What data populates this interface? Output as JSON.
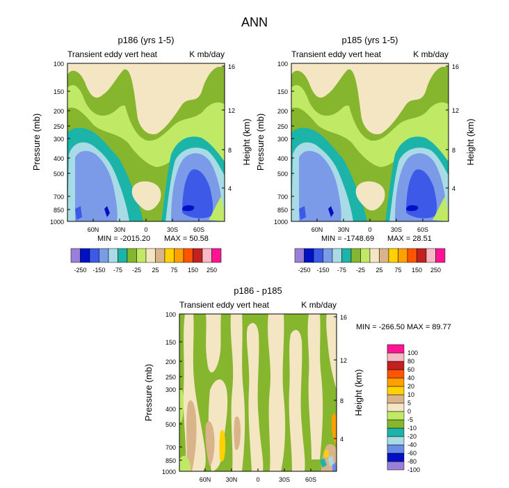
{
  "figure_title": "ANN",
  "colors": {
    "top_scale": [
      "#9a7fd8",
      "#0010c4",
      "#3c59e8",
      "#7b9be8",
      "#a8dbe6",
      "#1cb3a9",
      "#86b62e",
      "#c0ea66",
      "#f4e6c3",
      "#d9b48a",
      "#ffd200",
      "#ffa000",
      "#ff5500",
      "#c22021",
      "#f7b9c4",
      "#ff1493"
    ],
    "diff_scale": [
      "#9a7fd8",
      "#0010c4",
      "#6b8be8",
      "#a8dbe6",
      "#1cb3a9",
      "#86b62e",
      "#c0ea66",
      "#f4e6c3",
      "#d9b48a",
      "#ffd200",
      "#ffa000",
      "#ff5500",
      "#c22021",
      "#f7b9c4",
      "#ff1493"
    ]
  },
  "chart_data": [
    {
      "type": "contour",
      "title": "p186 (yrs 1-5)",
      "left_label": "Transient eddy vert heat",
      "right_label": "K mb/day",
      "ylabel": "Pressure (mb)",
      "ylabel_right": "Height (km)",
      "x_ticks": [
        "60N",
        "30N",
        "0",
        "30S",
        "60S"
      ],
      "y_ticks": [
        "100",
        "150",
        "200",
        "250",
        "300",
        "400",
        "500",
        "700",
        "850",
        "1000"
      ],
      "y_right_ticks": [
        "16",
        "12",
        "8",
        "4"
      ],
      "min_label": "MIN = -2015.20",
      "max_label": "MAX = 50.58",
      "colorbar_labels": [
        "-250",
        "-150",
        "-75",
        "-25",
        "25",
        "75",
        "150",
        "250"
      ],
      "levels": [
        -250,
        -200,
        -150,
        -100,
        -75,
        -50,
        -25,
        0,
        25,
        50,
        75,
        100,
        150,
        200,
        250
      ]
    },
    {
      "type": "contour",
      "title": "p185 (yrs 1-5)",
      "left_label": "Transient eddy vert heat",
      "right_label": "K mb/day",
      "ylabel": "Pressure (mb)",
      "ylabel_right": "Height (km)",
      "x_ticks": [
        "60N",
        "30N",
        "0",
        "30S",
        "60S"
      ],
      "y_ticks": [
        "100",
        "150",
        "200",
        "250",
        "300",
        "400",
        "500",
        "700",
        "850",
        "1000"
      ],
      "y_right_ticks": [
        "16",
        "12",
        "8",
        "4"
      ],
      "min_label": "MIN = -1748.69",
      "max_label": "MAX = 28.51",
      "colorbar_labels": [
        "-250",
        "-150",
        "-75",
        "-25",
        "25",
        "75",
        "150",
        "250"
      ],
      "levels": [
        -250,
        -200,
        -150,
        -100,
        -75,
        -50,
        -25,
        0,
        25,
        50,
        75,
        100,
        150,
        200,
        250
      ]
    },
    {
      "type": "contour",
      "title": "p186 - p185",
      "left_label": "Transient eddy vert heat",
      "right_label": "K mb/day",
      "ylabel": "Pressure (mb)",
      "ylabel_right": "Height (km)",
      "x_ticks": [
        "60N",
        "30N",
        "0",
        "30S",
        "60S"
      ],
      "y_ticks": [
        "100",
        "150",
        "200",
        "250",
        "300",
        "400",
        "500",
        "700",
        "850",
        "1000"
      ],
      "y_right_ticks": [
        "16",
        "12",
        "8",
        "4"
      ],
      "min_label": "MIN = -266.50",
      "max_label": "MAX = 89.77",
      "colorbar_labels": [
        "100",
        "80",
        "60",
        "40",
        "20",
        "10",
        "5",
        "0",
        "-5",
        "-10",
        "-20",
        "-40",
        "-60",
        "-80",
        "-100"
      ],
      "levels": [
        -100,
        -80,
        -60,
        -40,
        -20,
        -10,
        -5,
        0,
        5,
        10,
        20,
        40,
        60,
        80,
        100
      ]
    }
  ]
}
